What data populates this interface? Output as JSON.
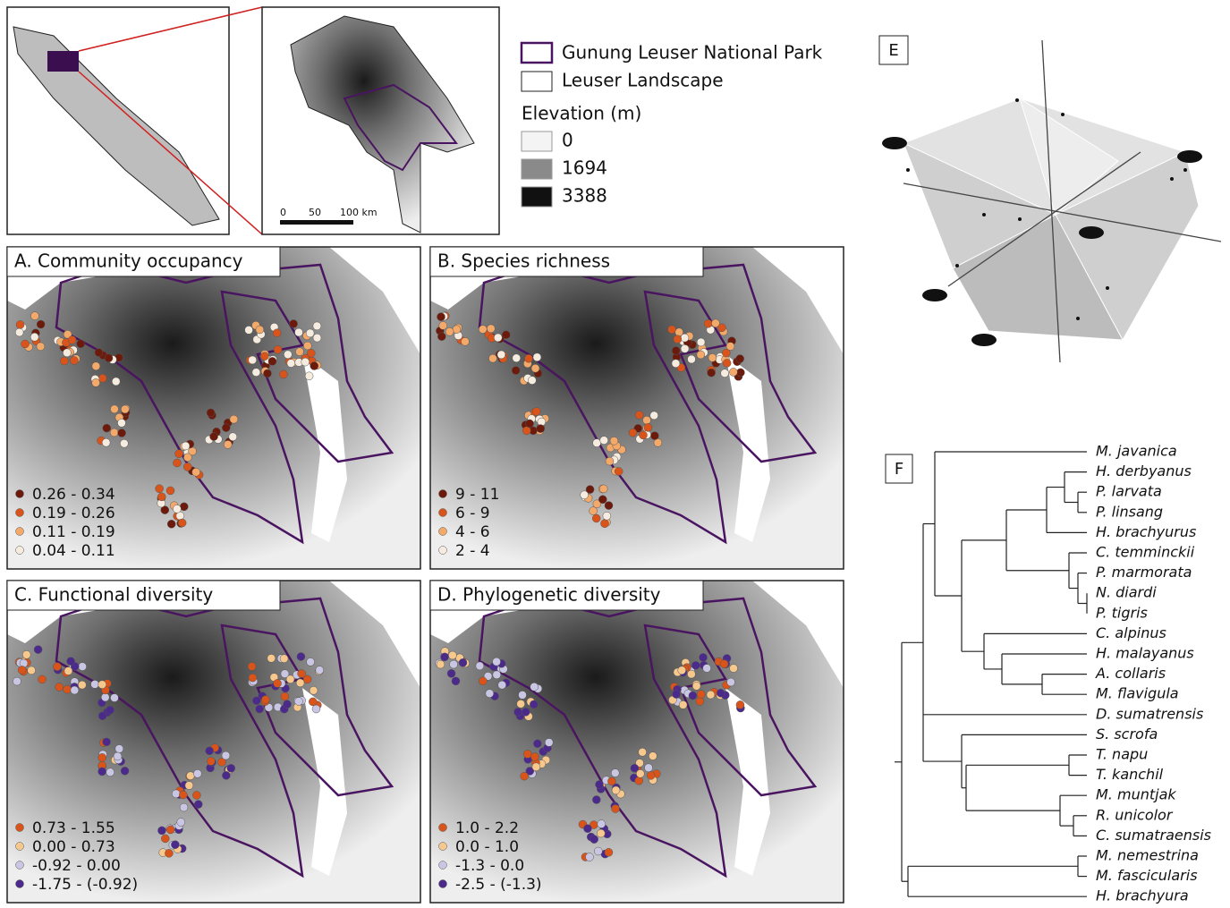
{
  "locator": {
    "legend": {
      "park": "Gunung Leuser National Park",
      "landscape": "Leuser Landscape",
      "elevation_title": "Elevation (m)",
      "elevation": [
        {
          "label": "0",
          "color": "#f4f4f4"
        },
        {
          "label": "1694",
          "color": "#8a8a8a"
        },
        {
          "label": "3388",
          "color": "#111111"
        }
      ]
    },
    "scale_labels": [
      "0",
      "50",
      "100 km"
    ]
  },
  "panels": [
    {
      "title": "A. Community occupancy",
      "legend": [
        {
          "label": "0.26 - 0.34",
          "color": "#6b1a0b"
        },
        {
          "label": "0.19 - 0.26",
          "color": "#d9541a"
        },
        {
          "label": "0.11 - 0.19",
          "color": "#f3a96a"
        },
        {
          "label": "0.04 - 0.11",
          "color": "#f5ecdf"
        }
      ]
    },
    {
      "title": "B. Species richness",
      "legend": [
        {
          "label": "9 - 11",
          "color": "#6b1a0b"
        },
        {
          "label": "6 - 9",
          "color": "#d9541a"
        },
        {
          "label": "4 - 6",
          "color": "#f3a96a"
        },
        {
          "label": "2 - 4",
          "color": "#f5ecdf"
        }
      ]
    },
    {
      "title": "C. Functional diversity",
      "legend": [
        {
          "label": "0.73 - 1.55",
          "color": "#d9541a"
        },
        {
          "label": "0.00 - 0.73",
          "color": "#f6c88d"
        },
        {
          "label": "-0.92 - 0.00",
          "color": "#c9c6e3"
        },
        {
          "label": "-1.75 - (-0.92)",
          "color": "#4b2a8c"
        }
      ]
    },
    {
      "title": "D. Phylogenetic diversity",
      "legend": [
        {
          "label": "1.0 - 2.2",
          "color": "#d9541a"
        },
        {
          "label": "0.0 - 1.0",
          "color": "#f6c88d"
        },
        {
          "label": "-1.3 - 0.0",
          "color": "#c9c6e3"
        },
        {
          "label": "-2.5  - (-1.3)",
          "color": "#4b2a8c"
        }
      ]
    }
  ],
  "panel_e": {
    "label": "E"
  },
  "panel_f": {
    "label": "F",
    "species": [
      "M. javanica",
      "H. derbyanus",
      "P. larvata",
      "P. linsang",
      "H. brachyurus",
      "C. temminckii",
      "P. marmorata",
      "N. diardi",
      "P. tigris",
      "C. alpinus",
      "H. malayanus",
      "A. collaris",
      "M. flavigula",
      "D. sumatrensis",
      "S. scrofa",
      "T. napu",
      "T. kanchil",
      "M. muntjak",
      "R. unicolor",
      "C. sumatraensis",
      "M. nemestrina",
      "M. fascicularis",
      "H. brachyura"
    ]
  }
}
